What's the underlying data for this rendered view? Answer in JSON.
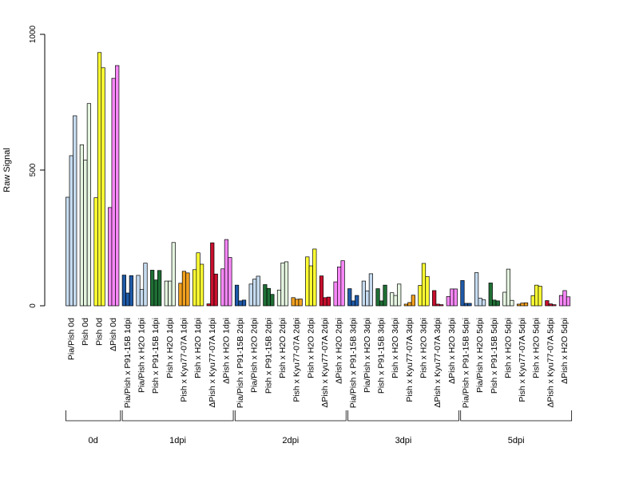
{
  "chart_data": {
    "type": "bar",
    "title": "",
    "xlabel": "",
    "ylabel": "Raw Signal",
    "ylim": [
      0,
      1000
    ],
    "yticks": [
      0,
      500,
      1000
    ],
    "grid": false,
    "legend": "none",
    "bars_per_group": 3,
    "categories": [
      "Pia/Pish 0d",
      "Pish 0d",
      "Pish 0d",
      "ΔPish 0d",
      "Pia/Pish x P91-15B 1dpi",
      "Pia/Pish x H2O 1dpi",
      "Pish x P91-15B 1dpi",
      "Pish x H2O 1dpi",
      "Pish x Kyu77-07A 1dpi",
      "Pish x H2O 1dpi",
      "ΔPish x Kyu77-07A 1dpi",
      "ΔPish x H2O 1dpi",
      "Pia/Pish x P91-15B 2dpi",
      "Pia/Pish x H2O 2dpi",
      "Pish x P91-15B 2dpi",
      "Pish x H2O 2dpi",
      "Pish x Kyu77-07A 2dpi",
      "Pish x H2O 2dpi",
      "ΔPish x Kyu77-07A 2dpi",
      "ΔPish x H2O 2dpi",
      "Pia/Pish x P91-15B 3dpi",
      "Pia/Pish x H2O 3dpi",
      "Pish x P91-15B 3dpi",
      "Pish x H2O 3dpi",
      "Pish x Kyu77-07A 3dpi",
      "Pish x H2O 3dpi",
      "ΔPish x Kyu77-07A 3dpi",
      "ΔPish x H2O 3dpi",
      "Pia/Pish x P91-15B 5dpi",
      "Pia/Pish x H2O 5dpi",
      "Pish x P91-15B 5dpi",
      "Pish x H2O 5dpi",
      "Pish x Kyu77-07A 5dpi",
      "Pish x H2O 5dpi",
      "ΔPish x Kyu77-07A 5dpi",
      "ΔPish x H2O 5dpi"
    ],
    "colors": [
      "#c6dbef",
      "#e5f5e0",
      "#ffff33",
      "#f787f7",
      "#1f5aa8",
      "#c6dbef",
      "#1f6f35",
      "#e5f5e0",
      "#f0a020",
      "#ffff33",
      "#c8102e",
      "#f787f7",
      "#1f5aa8",
      "#c6dbef",
      "#1f6f35",
      "#e5f5e0",
      "#f0a020",
      "#ffff33",
      "#c8102e",
      "#f787f7",
      "#1f5aa8",
      "#c6dbef",
      "#1f6f35",
      "#e5f5e0",
      "#f0a020",
      "#ffff33",
      "#c8102e",
      "#f787f7",
      "#1f5aa8",
      "#c6dbef",
      "#1f6f35",
      "#e5f5e0",
      "#f0a020",
      "#ffff33",
      "#c8102e",
      "#f787f7"
    ],
    "values": [
      [
        400,
        553,
        700
      ],
      [
        593,
        537,
        745
      ],
      [
        398,
        933,
        877
      ],
      [
        362,
        838,
        885
      ],
      [
        113,
        47,
        111
      ],
      [
        112,
        60,
        157
      ],
      [
        131,
        95,
        130
      ],
      [
        91,
        91,
        233
      ],
      [
        83,
        127,
        121
      ],
      [
        133,
        195,
        153
      ],
      [
        7,
        232,
        117
      ],
      [
        136,
        244,
        178
      ],
      [
        76,
        18,
        21
      ],
      [
        80,
        98,
        109
      ],
      [
        78,
        64,
        42
      ],
      [
        58,
        158,
        162
      ],
      [
        30,
        24,
        25
      ],
      [
        180,
        147,
        209
      ],
      [
        110,
        30,
        32
      ],
      [
        88,
        143,
        166
      ],
      [
        63,
        18,
        38
      ],
      [
        91,
        55,
        118
      ],
      [
        63,
        18,
        76
      ],
      [
        48,
        38,
        80
      ],
      [
        6,
        12,
        39
      ],
      [
        75,
        156,
        108
      ],
      [
        56,
        6,
        4
      ],
      [
        34,
        62,
        62
      ],
      [
        93,
        9,
        9
      ],
      [
        122,
        28,
        22
      ],
      [
        84,
        21,
        18
      ],
      [
        50,
        135,
        20
      ],
      [
        6,
        10,
        11
      ],
      [
        37,
        76,
        72
      ],
      [
        19,
        7,
        4
      ],
      [
        38,
        56,
        33
      ]
    ],
    "group_brackets": [
      {
        "label": "0d",
        "start": 0,
        "end": 3
      },
      {
        "label": "1dpi",
        "start": 4,
        "end": 11
      },
      {
        "label": "2dpi",
        "start": 12,
        "end": 19
      },
      {
        "label": "3dpi",
        "start": 20,
        "end": 27
      },
      {
        "label": "5dpi",
        "start": 28,
        "end": 35
      }
    ]
  }
}
